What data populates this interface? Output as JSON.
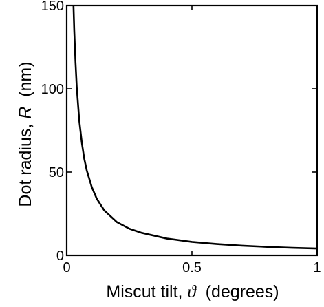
{
  "chart_data": {
    "type": "line",
    "xlabel": {
      "before": "Miscut tilt, ",
      "symbol": "ϑ",
      "after": "  (degrees)"
    },
    "ylabel": {
      "before": "Dot radius, ",
      "symbol": "R",
      "after": "  (nm)"
    },
    "xlim": [
      0,
      1
    ],
    "ylim": [
      0,
      150
    ],
    "xticks": [
      {
        "value": 0,
        "label": "0"
      },
      {
        "value": 0.5,
        "label": "0.5"
      },
      {
        "value": 1,
        "label": "1"
      }
    ],
    "yticks": [
      {
        "value": 0,
        "label": "0"
      },
      {
        "value": 50,
        "label": "50"
      },
      {
        "value": 100,
        "label": "100"
      },
      {
        "value": 150,
        "label": "150"
      }
    ],
    "grid": false,
    "series": [
      {
        "color": "#000000",
        "x": [
          0.027,
          0.03,
          0.035,
          0.04,
          0.05,
          0.06,
          0.07,
          0.08,
          0.1,
          0.12,
          0.15,
          0.2,
          0.25,
          0.3,
          0.4,
          0.5,
          0.6,
          0.7,
          0.8,
          0.9,
          1.0
        ],
        "y": [
          150,
          135,
          116,
          101,
          81,
          68,
          58,
          51,
          41,
          34,
          27,
          20,
          16,
          13.5,
          10.1,
          8.1,
          6.8,
          5.8,
          5.1,
          4.5,
          4.1
        ]
      }
    ]
  }
}
